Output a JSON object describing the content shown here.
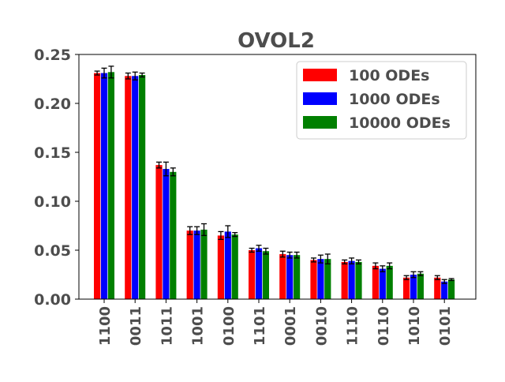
{
  "chart_data": {
    "type": "bar",
    "title": "OVOL2",
    "xlabel": "",
    "ylabel": "",
    "ylim": [
      0,
      0.25
    ],
    "yticks": [
      "0.00",
      "0.05",
      "0.10",
      "0.15",
      "0.20",
      "0.25"
    ],
    "ytick_values": [
      0,
      0.05,
      0.1,
      0.15,
      0.2,
      0.25
    ],
    "categories": [
      "1100",
      "0011",
      "1011",
      "1001",
      "0100",
      "1101",
      "0001",
      "0010",
      "1110",
      "0110",
      "1010",
      "0101"
    ],
    "series": [
      {
        "name": "100 ODEs",
        "color": "#ff0000",
        "values": [
          0.231,
          0.228,
          0.137,
          0.07,
          0.065,
          0.05,
          0.046,
          0.04,
          0.038,
          0.034,
          0.022,
          0.022
        ],
        "errors": [
          0.002,
          0.003,
          0.003,
          0.004,
          0.004,
          0.002,
          0.003,
          0.002,
          0.002,
          0.003,
          0.002,
          0.002
        ]
      },
      {
        "name": "1000 ODEs",
        "color": "#0000ff",
        "values": [
          0.231,
          0.228,
          0.133,
          0.07,
          0.069,
          0.052,
          0.045,
          0.041,
          0.039,
          0.031,
          0.025,
          0.018
        ],
        "errors": [
          0.005,
          0.004,
          0.007,
          0.004,
          0.006,
          0.003,
          0.003,
          0.004,
          0.003,
          0.003,
          0.003,
          0.002
        ]
      },
      {
        "name": "10000 ODEs",
        "color": "#008000",
        "values": [
          0.232,
          0.229,
          0.13,
          0.071,
          0.066,
          0.049,
          0.045,
          0.041,
          0.038,
          0.034,
          0.026,
          0.02
        ],
        "errors": [
          0.006,
          0.002,
          0.004,
          0.006,
          0.002,
          0.003,
          0.003,
          0.005,
          0.002,
          0.003,
          0.002,
          0.001
        ]
      }
    ],
    "legend_position": "top-right",
    "grid": false
  }
}
